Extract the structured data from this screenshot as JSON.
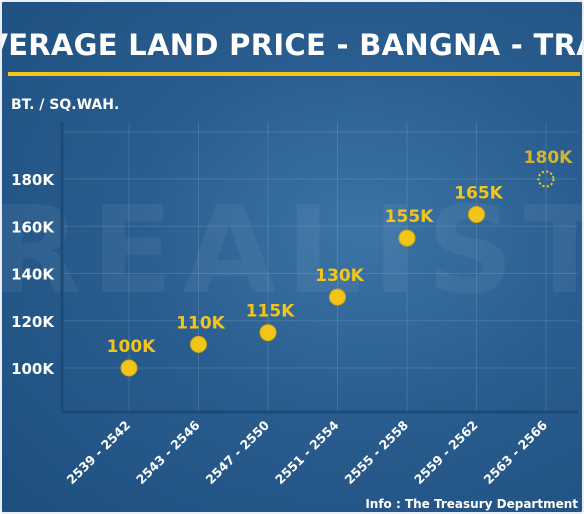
{
  "header": {
    "title": "AVERAGE LAND PRICE - BANGNA - TRAD",
    "accent_color": "#f2c51a"
  },
  "watermark": {
    "text": "REALIST"
  },
  "footer": {
    "source": "Info : The Treasury Department"
  },
  "chart_data": {
    "type": "scatter",
    "title": "AVERAGE LAND PRICE - BANGNA - TRAD",
    "ylabel": "BT. / SQ.WAH.",
    "xlabel": "",
    "categories": [
      "2539 - 2542",
      "2543 - 2546",
      "2547 - 2550",
      "2551 - 2554",
      "2555 - 2558",
      "2559 - 2562",
      "2563 - 2566"
    ],
    "values": [
      100000,
      110000,
      115000,
      130000,
      155000,
      165000,
      180000
    ],
    "point_labels": [
      "100K",
      "110K",
      "115K",
      "130K",
      "155K",
      "165K",
      "180K"
    ],
    "projected": [
      false,
      false,
      false,
      false,
      false,
      false,
      true
    ],
    "yticks": [
      100000,
      120000,
      140000,
      160000,
      180000
    ],
    "ytick_labels": [
      "100K",
      "120K",
      "140K",
      "160K",
      "180K"
    ],
    "ylim": [
      100000,
      180000
    ],
    "grid": true,
    "legend": "none",
    "colors": {
      "point": "#f2c51a",
      "label": "#f2c51a",
      "text": "#ffffff",
      "axis": "#1c4a76"
    }
  }
}
